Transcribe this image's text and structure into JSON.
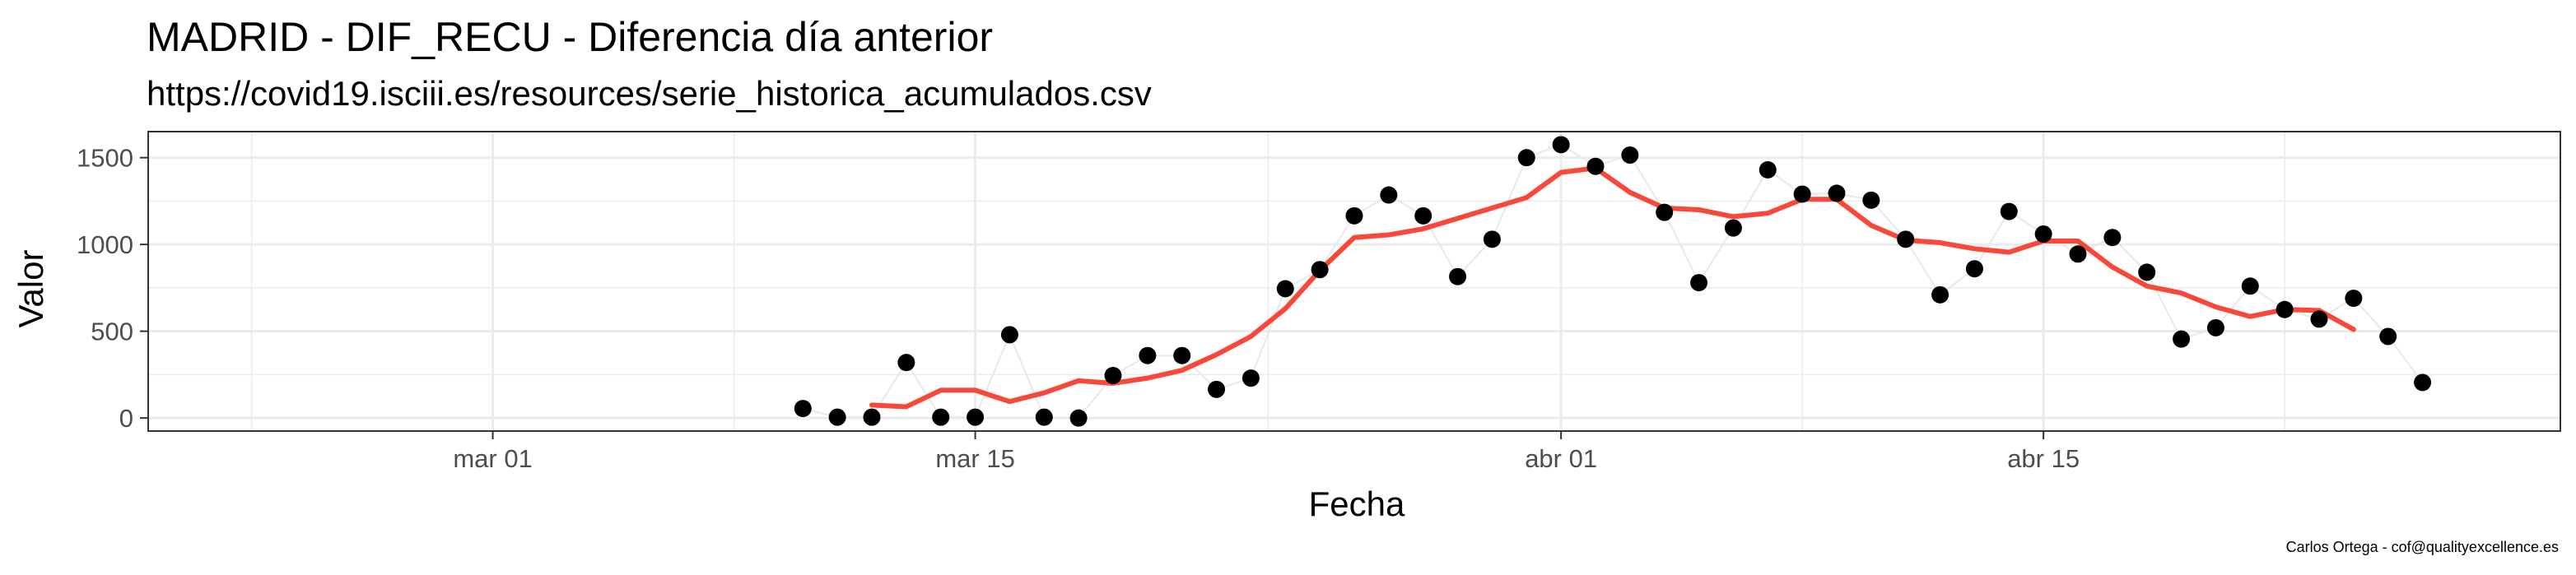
{
  "chart_data": {
    "type": "scatter",
    "title": "MADRID - DIF_RECU - Diferencia día anterior",
    "subtitle": "https://covid19.isciii.es/resources/serie_historica_acumulados.csv",
    "xlabel": "Fecha",
    "ylabel": "Valor",
    "caption": "Carlos Ortega - cof@qualityexcellence.es",
    "xlim": [
      "2020-02-20",
      "2020-04-30"
    ],
    "ylim": [
      -75,
      1650
    ],
    "x_ticks": [
      {
        "date": "2020-03-01",
        "label": "mar 01"
      },
      {
        "date": "2020-03-15",
        "label": "mar 15"
      },
      {
        "date": "2020-04-01",
        "label": "abr 01"
      },
      {
        "date": "2020-04-15",
        "label": "abr 15"
      }
    ],
    "y_ticks": [
      0,
      500,
      1000,
      1500
    ],
    "grid": true,
    "theme": "bw",
    "series": [
      {
        "kind": "points",
        "color": "#000000",
        "line_color": "#e8e8e8",
        "x": [
          "2020-03-10",
          "2020-03-11",
          "2020-03-12",
          "2020-03-13",
          "2020-03-14",
          "2020-03-15",
          "2020-03-16",
          "2020-03-17",
          "2020-03-18",
          "2020-03-19",
          "2020-03-20",
          "2020-03-21",
          "2020-03-22",
          "2020-03-23",
          "2020-03-24",
          "2020-03-25",
          "2020-03-26",
          "2020-03-27",
          "2020-03-28",
          "2020-03-29",
          "2020-03-30",
          "2020-03-31",
          "2020-04-01",
          "2020-04-02",
          "2020-04-03",
          "2020-04-04",
          "2020-04-05",
          "2020-04-06",
          "2020-04-07",
          "2020-04-08",
          "2020-04-09",
          "2020-04-10",
          "2020-04-11",
          "2020-04-12",
          "2020-04-13",
          "2020-04-14",
          "2020-04-15",
          "2020-04-16",
          "2020-04-17",
          "2020-04-18",
          "2020-04-19",
          "2020-04-20",
          "2020-04-21",
          "2020-04-22",
          "2020-04-23",
          "2020-04-24",
          "2020-04-25",
          "2020-04-26"
        ],
        "y": [
          55,
          5,
          5,
          320,
          5,
          5,
          480,
          5,
          0,
          245,
          360,
          360,
          165,
          230,
          745,
          855,
          1165,
          1285,
          1165,
          815,
          1030,
          1500,
          1575,
          1450,
          1515,
          1185,
          780,
          1095,
          1430,
          1290,
          1295,
          1255,
          1030,
          710,
          860,
          1190,
          1060,
          945,
          1040,
          840,
          455,
          520,
          760,
          625,
          570,
          690,
          470,
          205
        ]
      },
      {
        "kind": "rolling-mean",
        "color": "#f8483a",
        "x": [
          "2020-03-12",
          "2020-03-13",
          "2020-03-14",
          "2020-03-15",
          "2020-03-16",
          "2020-03-17",
          "2020-03-18",
          "2020-03-19",
          "2020-03-20",
          "2020-03-21",
          "2020-03-22",
          "2020-03-23",
          "2020-03-24",
          "2020-03-25",
          "2020-03-26",
          "2020-03-27",
          "2020-03-28",
          "2020-03-29",
          "2020-03-30",
          "2020-03-31",
          "2020-04-01",
          "2020-04-02",
          "2020-04-03",
          "2020-04-04",
          "2020-04-05",
          "2020-04-06",
          "2020-04-07",
          "2020-04-08",
          "2020-04-09",
          "2020-04-10",
          "2020-04-11",
          "2020-04-12",
          "2020-04-13",
          "2020-04-14",
          "2020-04-15",
          "2020-04-16",
          "2020-04-17",
          "2020-04-18",
          "2020-04-19",
          "2020-04-20",
          "2020-04-21",
          "2020-04-22",
          "2020-04-23",
          "2020-04-24"
        ],
        "y": [
          75,
          65,
          160,
          160,
          95,
          145,
          215,
          200,
          230,
          275,
          365,
          470,
          630,
          850,
          1040,
          1055,
          1090,
          1150,
          1210,
          1270,
          1415,
          1440,
          1300,
          1210,
          1200,
          1160,
          1180,
          1260,
          1260,
          1110,
          1025,
          1010,
          975,
          955,
          1020,
          1020,
          870,
          760,
          720,
          640,
          585,
          625,
          620,
          510
        ]
      }
    ]
  }
}
